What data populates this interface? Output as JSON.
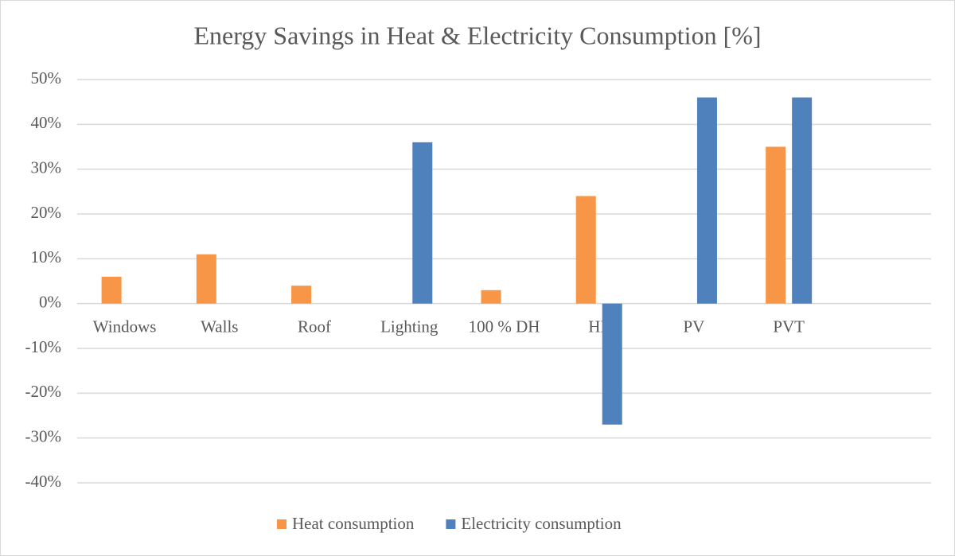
{
  "chart_data": {
    "type": "bar",
    "title": "Energy Savings in Heat & Electricity Consumption  [%]",
    "categories": [
      "Windows",
      "Walls",
      "Roof",
      "Lighting",
      "100 % DH",
      "HP",
      "PV",
      "PVT",
      null
    ],
    "series": [
      {
        "name": "Heat consumption",
        "color": "#f79646",
        "values": [
          6,
          11,
          4,
          null,
          3,
          24,
          null,
          35,
          null
        ]
      },
      {
        "name": "Electricity consumption",
        "color": "#4f81bd",
        "values": [
          null,
          null,
          null,
          36,
          null,
          -27,
          46,
          46,
          null
        ]
      }
    ],
    "ylim": [
      -40,
      50
    ],
    "yticks": [
      {
        "value": -40,
        "label": "-40%"
      },
      {
        "value": -30,
        "label": "-30%"
      },
      {
        "value": -20,
        "label": "-20%"
      },
      {
        "value": -10,
        "label": "-10%"
      },
      {
        "value": 0,
        "label": "0%"
      },
      {
        "value": 10,
        "label": "10%"
      },
      {
        "value": 20,
        "label": "20%"
      },
      {
        "value": 30,
        "label": "30%"
      },
      {
        "value": 40,
        "label": "40%"
      },
      {
        "value": 50,
        "label": "50%"
      }
    ],
    "grid": true,
    "legend": "bottom"
  }
}
